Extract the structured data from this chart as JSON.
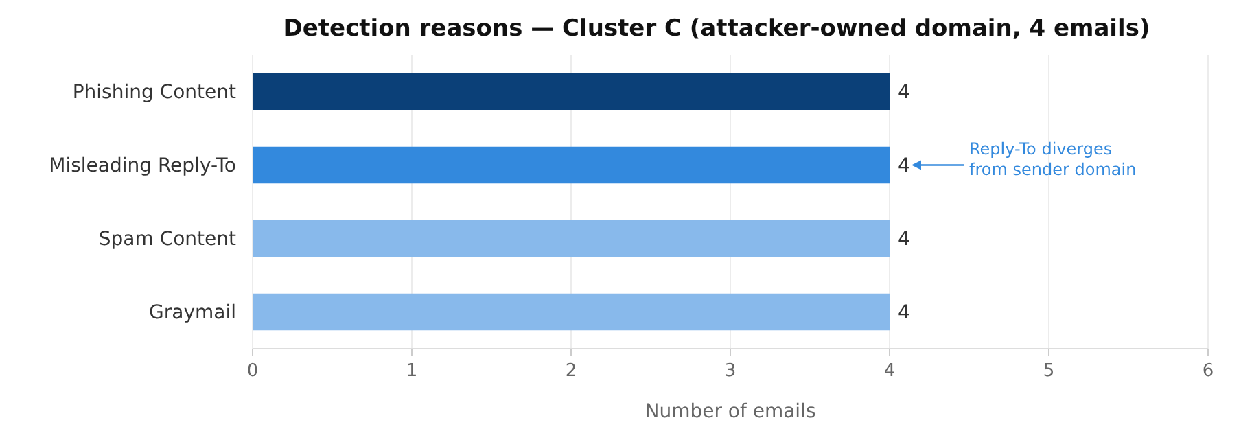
{
  "chart_data": {
    "type": "bar",
    "orientation": "horizontal",
    "title": "Detection reasons — Cluster C (attacker-owned domain, 4 emails)",
    "xlabel": "Number of emails",
    "categories": [
      "Phishing Content",
      "Misleading Reply-To",
      "Spam Content",
      "Graymail"
    ],
    "values": [
      4,
      4,
      4,
      4
    ],
    "colors": [
      "#0b4078",
      "#3389dd",
      "#88b9eb",
      "#88b9eb"
    ],
    "xlim": [
      0,
      6
    ],
    "xticks": [
      0,
      1,
      2,
      3,
      4,
      5,
      6
    ],
    "grid": "x",
    "data_labels": true,
    "annotations": [
      "Reply-To diverges\nfrom sender domain"
    ]
  }
}
